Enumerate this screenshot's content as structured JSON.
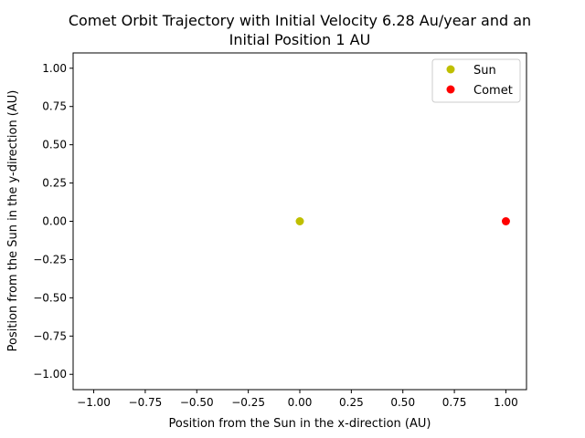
{
  "chart_data": {
    "type": "scatter",
    "title_lines": [
      "Comet Orbit Trajectory with Initial Velocity 6.28 Au/year and an",
      "Initial Position 1 AU"
    ],
    "xlabel": "Position from the Sun in the x-direction (AU)",
    "ylabel": "Position from the Sun in the y-direction (AU)",
    "xlim": [
      -1.1,
      1.1
    ],
    "ylim": [
      -1.1,
      1.1
    ],
    "xticks": [
      -1.0,
      -0.75,
      -0.5,
      -0.25,
      0.0,
      0.25,
      0.5,
      0.75,
      1.0
    ],
    "xtick_labels": [
      "−1.00",
      "−0.75",
      "−0.50",
      "−0.25",
      "0.00",
      "0.25",
      "0.50",
      "0.75",
      "1.00"
    ],
    "yticks": [
      1.0,
      0.75,
      0.5,
      0.25,
      0.0,
      -0.25,
      -0.5,
      -0.75,
      -1.0
    ],
    "ytick_labels": [
      "1.00",
      "0.75",
      "0.50",
      "0.25",
      "0.00",
      "−0.25",
      "−0.50",
      "−0.75",
      "−1.00"
    ],
    "grid": false,
    "legend_position": "top-right",
    "series": [
      {
        "name": "Sun",
        "color": "#bfbf00",
        "points": [
          {
            "x": 0.0,
            "y": 0.0
          }
        ]
      },
      {
        "name": "Comet",
        "color": "#ff0000",
        "points": [
          {
            "x": 1.0,
            "y": 0.0
          }
        ]
      }
    ]
  }
}
